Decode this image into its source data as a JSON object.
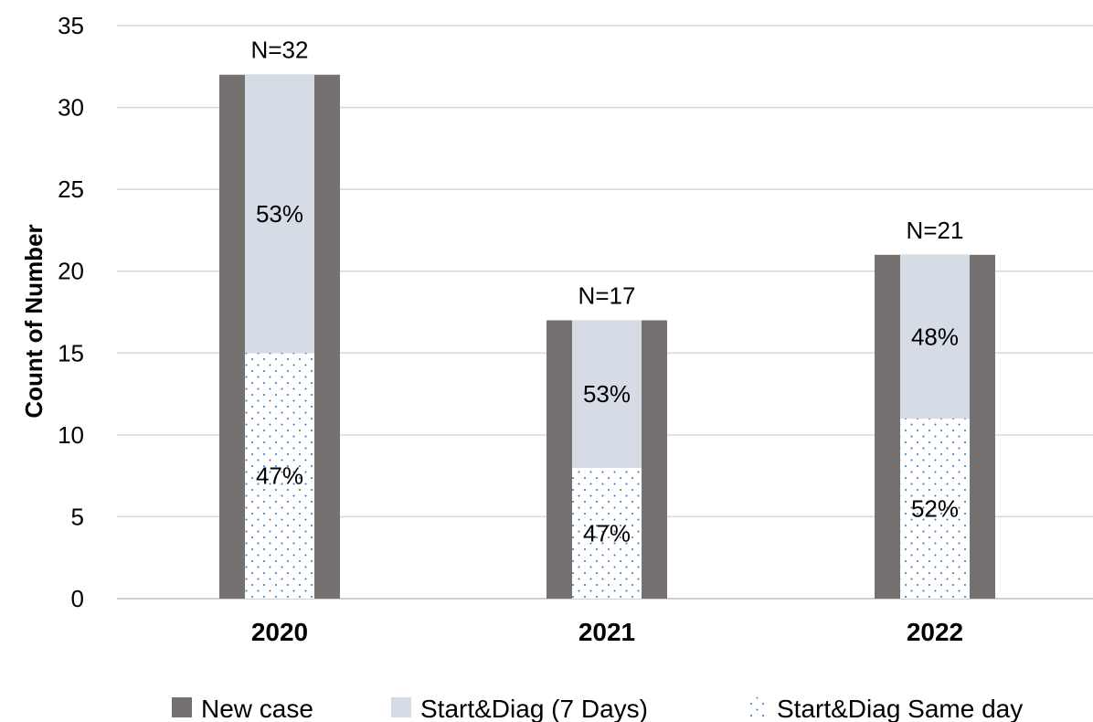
{
  "chart_data": {
    "type": "bar",
    "categories": [
      "2020",
      "2021",
      "2022"
    ],
    "series": [
      {
        "name": "New case",
        "values": [
          32,
          17,
          21
        ],
        "color": "#767171"
      },
      {
        "name": "Start&Diag (7 Days)",
        "values": [
          17,
          9,
          10
        ],
        "color": "#D6DCE5"
      },
      {
        "name": "Start&Diag Same day",
        "values": [
          15,
          8,
          11
        ],
        "color": "#ffffff",
        "pattern": "dotted",
        "dot_color": "#2E75B6"
      }
    ],
    "total_labels": [
      "N=32",
      "N=17",
      "N=21"
    ],
    "seven_day_pct_labels": [
      "53%",
      "53%",
      "48%"
    ],
    "same_day_pct_labels": [
      "47%",
      "47%",
      "52%"
    ],
    "ylabel": "Count of Number",
    "xlabel": "",
    "ylim": [
      0,
      35
    ],
    "yticks": [
      0,
      5,
      10,
      15,
      20,
      25,
      30,
      35
    ],
    "grid": true,
    "legend_position": "bottom"
  }
}
